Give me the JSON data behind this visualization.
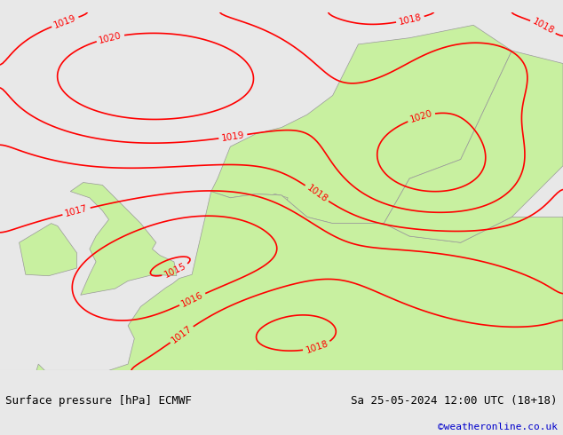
{
  "title_left": "Surface pressure [hPa] ECMWF",
  "title_right": "Sa 25-05-2024 12:00 UTC (18+18)",
  "credit": "©weatheronline.co.uk",
  "credit_color": "#0000cc",
  "background_color": "#e8e8e8",
  "land_color": "#c8f0a0",
  "sea_color": "#e8e8e8",
  "contour_color": "#ff0000",
  "border_color": "#999999",
  "label_fontsize": 7.5,
  "title_fontsize": 9,
  "credit_fontsize": 8,
  "fig_width": 6.34,
  "fig_height": 4.9,
  "dpi": 100
}
